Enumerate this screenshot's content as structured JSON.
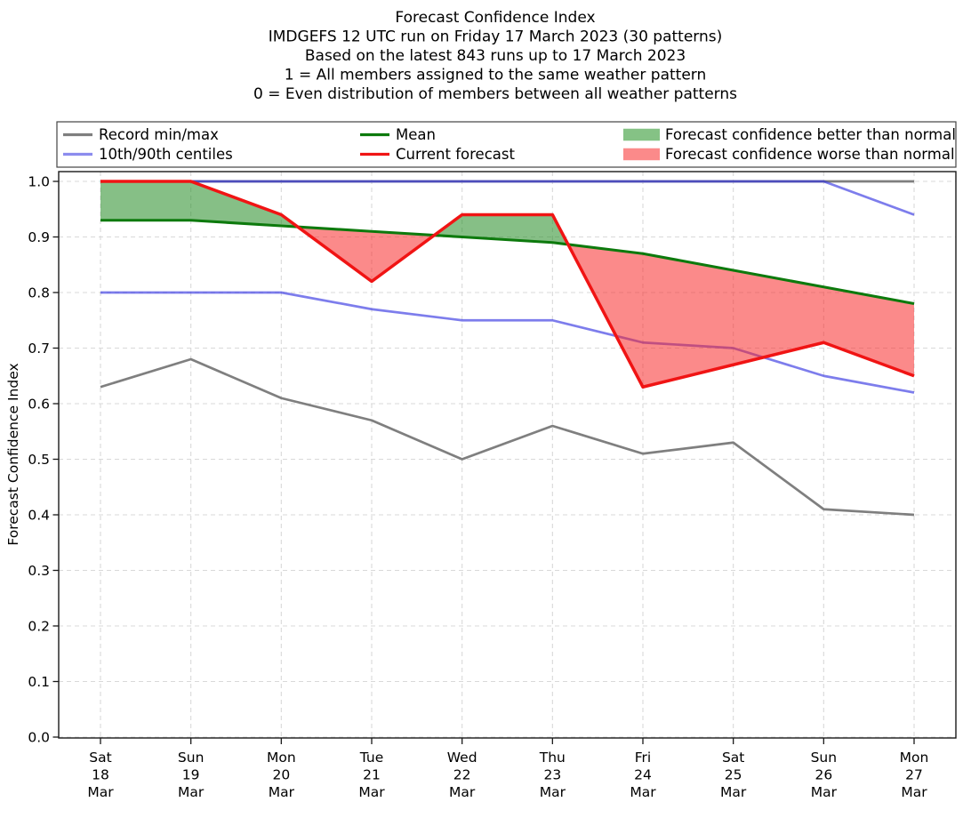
{
  "chart_data": {
    "type": "line",
    "title": "Forecast Confidence Index",
    "title_lines": [
      "Forecast Confidence Index",
      "IMDGEFS 12 UTC run on Friday 17 March 2023 (30 patterns)",
      "Based on the latest 843 runs up to 17 March 2023",
      "1 = All members assigned to the same weather pattern",
      "0 = Even distribution of members between all weather patterns"
    ],
    "xlabel": "",
    "ylabel": "Forecast Confidence Index",
    "ylim": [
      0.0,
      1.0
    ],
    "grid": true,
    "legend_position": "top",
    "yticks": [
      "0.0",
      "0.1",
      "0.2",
      "0.3",
      "0.4",
      "0.5",
      "0.6",
      "0.7",
      "0.8",
      "0.9",
      "1.0"
    ],
    "x_categories": [
      {
        "day": "Sat",
        "date": "18",
        "month": "Mar"
      },
      {
        "day": "Sun",
        "date": "19",
        "month": "Mar"
      },
      {
        "day": "Mon",
        "date": "20",
        "month": "Mar"
      },
      {
        "day": "Tue",
        "date": "21",
        "month": "Mar"
      },
      {
        "day": "Wed",
        "date": "22",
        "month": "Mar"
      },
      {
        "day": "Thu",
        "date": "23",
        "month": "Mar"
      },
      {
        "day": "Fri",
        "date": "24",
        "month": "Mar"
      },
      {
        "day": "Sat",
        "date": "25",
        "month": "Mar"
      },
      {
        "day": "Sun",
        "date": "26",
        "month": "Mar"
      },
      {
        "day": "Mon",
        "date": "27",
        "month": "Mar"
      }
    ],
    "series": [
      {
        "name": "Record max",
        "role": "extreme",
        "color": "#7f7f7f",
        "opacity": 1,
        "values": [
          1.0,
          1.0,
          1.0,
          1.0,
          1.0,
          1.0,
          1.0,
          1.0,
          1.0,
          1.0
        ]
      },
      {
        "name": "Record min",
        "role": "extreme",
        "color": "#7f7f7f",
        "opacity": 1,
        "values": [
          0.63,
          0.68,
          0.61,
          0.57,
          0.5,
          0.56,
          0.51,
          0.53,
          0.41,
          0.4
        ]
      },
      {
        "name": "90th centile",
        "role": "centile",
        "color": "#2d2de0",
        "opacity": 0.62,
        "values": [
          1.0,
          1.0,
          1.0,
          1.0,
          1.0,
          1.0,
          1.0,
          1.0,
          1.0,
          0.94
        ]
      },
      {
        "name": "10th centile",
        "role": "centile",
        "color": "#2d2de0",
        "opacity": 0.62,
        "values": [
          0.8,
          0.8,
          0.8,
          0.77,
          0.75,
          0.75,
          0.71,
          0.7,
          0.65,
          0.62
        ]
      },
      {
        "name": "Mean",
        "role": "mean",
        "color": "#0d7a0d",
        "opacity": 1,
        "values": [
          0.93,
          0.93,
          0.92,
          0.91,
          0.9,
          0.89,
          0.87,
          0.84,
          0.81,
          0.78
        ]
      },
      {
        "name": "Current forecast",
        "role": "current",
        "color": "#f01414",
        "opacity": 1,
        "values": [
          1.0,
          1.0,
          0.94,
          0.82,
          0.94,
          0.94,
          0.63,
          0.67,
          0.71,
          0.65
        ]
      }
    ],
    "fills": {
      "better": {
        "label": "Forecast confidence better than normal",
        "color": "#228b22",
        "opacity": 0.55
      },
      "worse": {
        "label": "Forecast confidence worse than normal",
        "color": "#f82a2a",
        "opacity": 0.55
      }
    },
    "legend_entries": [
      {
        "label": "Record min/max",
        "swatch": "line",
        "color": "#7f7f7f"
      },
      {
        "label": "10th/90th centiles",
        "swatch": "line",
        "color": "#8c8cee"
      },
      {
        "label": "Mean",
        "swatch": "line",
        "color": "#0d7a0d"
      },
      {
        "label": "Current forecast",
        "swatch": "line",
        "color": "#f01414"
      },
      {
        "label": "Forecast confidence better than normal",
        "swatch": "patch",
        "color": "#85c285"
      },
      {
        "label": "Forecast confidence worse than normal",
        "swatch": "patch",
        "color": "#fb8a8a"
      }
    ]
  }
}
